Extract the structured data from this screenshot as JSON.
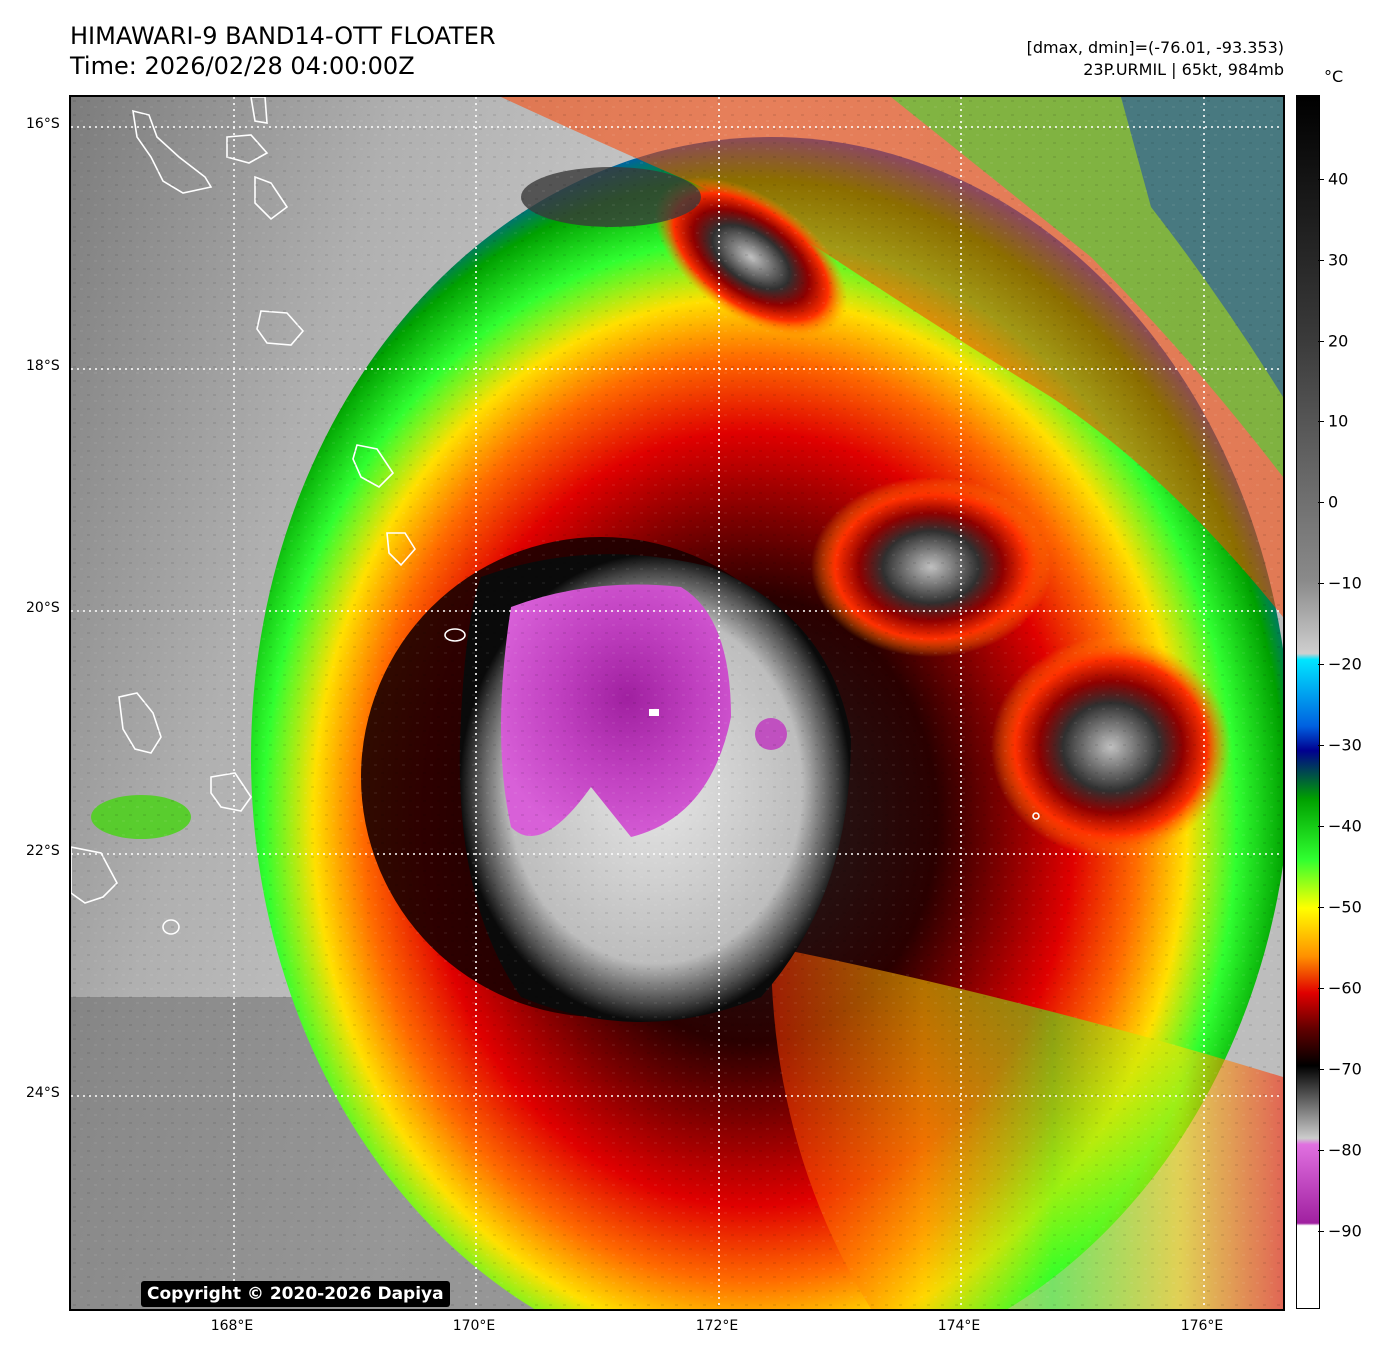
{
  "title": {
    "line1": "HIMAWARI-9 BAND14-OTT FLOATER",
    "line2": "Time: 2026/02/28 04:00:00Z"
  },
  "info": {
    "line1": "[dmax, dmin]=(-76.01, -93.353)",
    "line2": "23P.URMIL | 65kt, 984mb"
  },
  "colorbar": {
    "unit": "°C",
    "ticks": [
      "40",
      "30",
      "20",
      "10",
      "0",
      "−10",
      "−20",
      "−30",
      "−40",
      "−50",
      "−60",
      "−70",
      "−80",
      "−90"
    ]
  },
  "latitude_labels": [
    "16°S",
    "18°S",
    "20°S",
    "22°S",
    "24°S"
  ],
  "longitude_labels": [
    "168°E",
    "170°E",
    "172°E",
    "174°E",
    "176°E"
  ],
  "copyright": "Copyright © 2020-2026 Dapiya"
}
